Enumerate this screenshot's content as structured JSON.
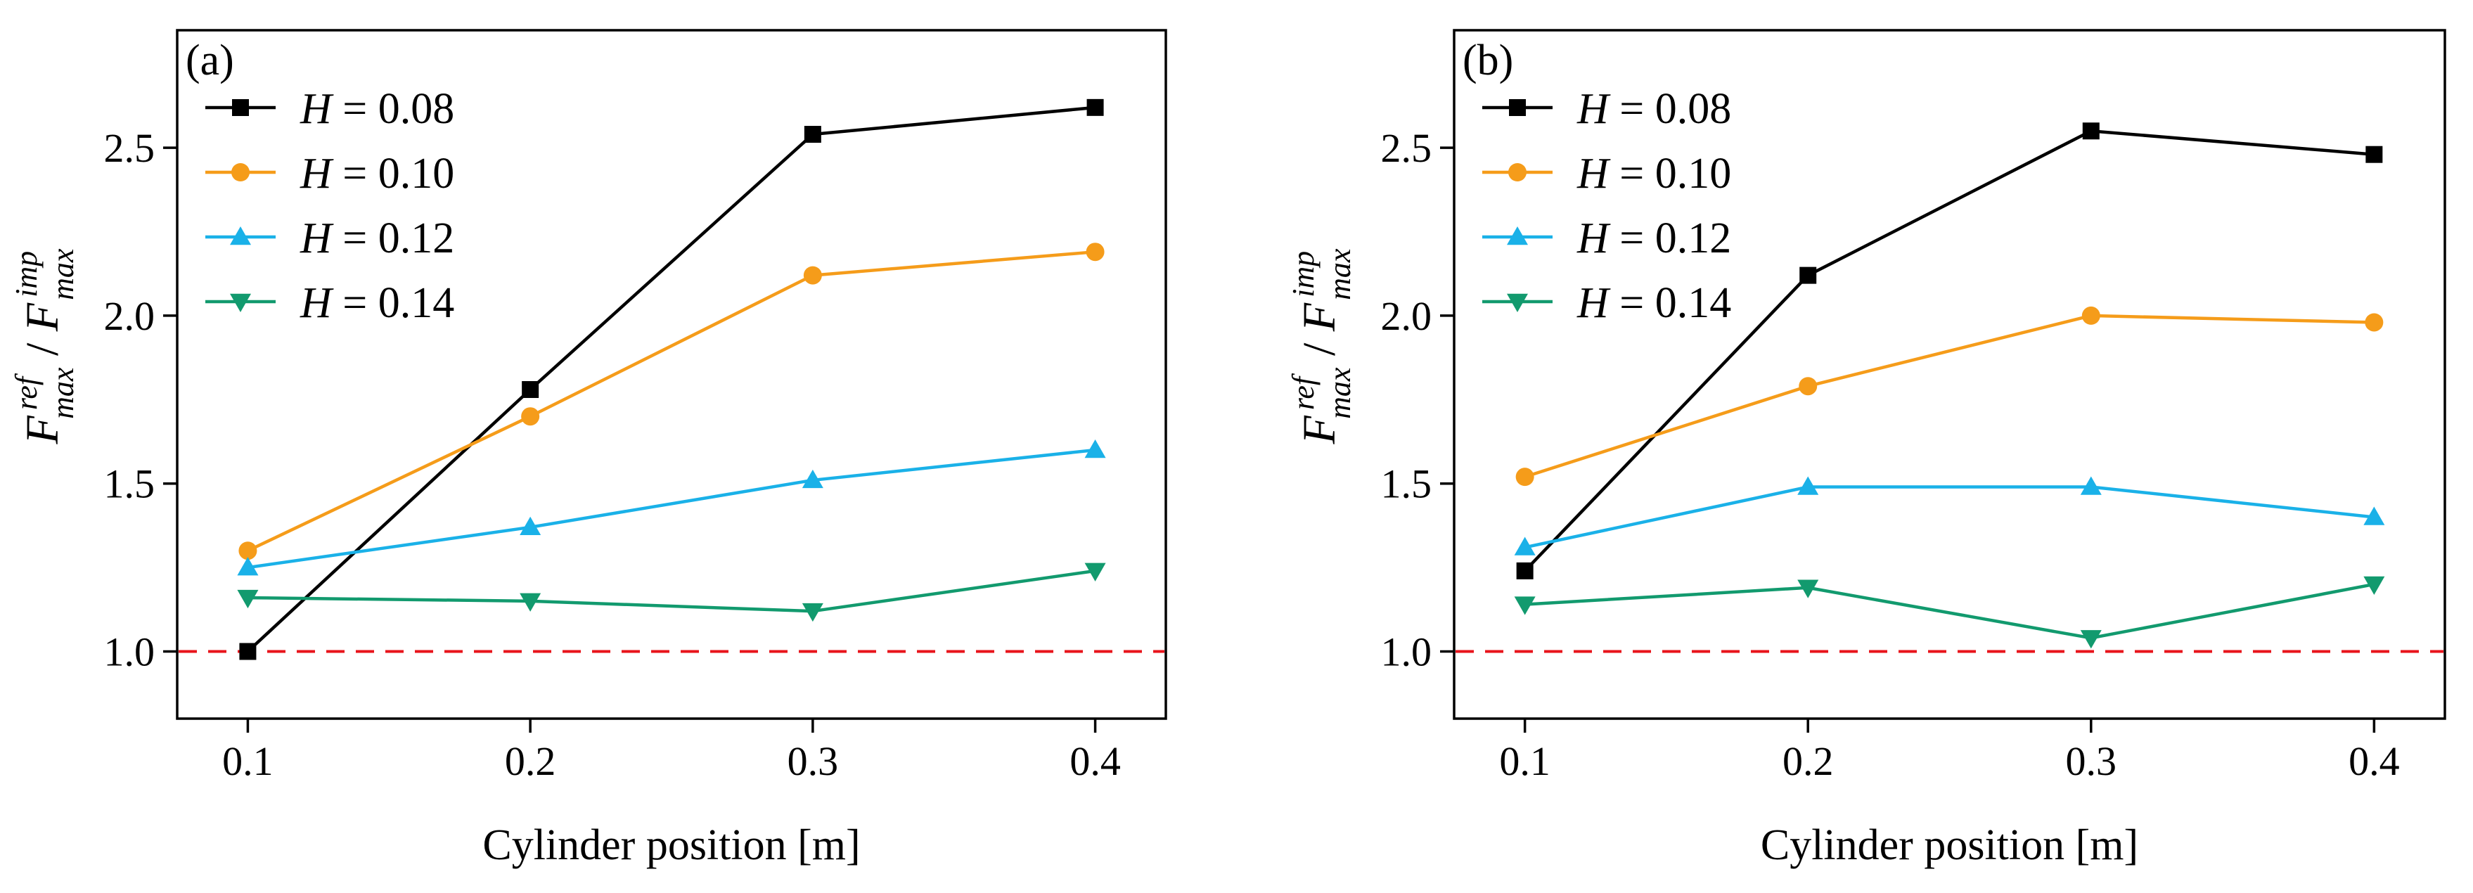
{
  "chart_data": [
    {
      "type": "line",
      "panel_label": "(a)",
      "xlabel": "Cylinder position [m]",
      "ylabel": {
        "base1": "F",
        "sup1": "ref",
        "sub1": "max",
        "sep": " / ",
        "base2": "F",
        "sup2": "imp",
        "sub2": "max"
      },
      "x": [
        0.1,
        0.2,
        0.3,
        0.4
      ],
      "xticks": [
        "0.1",
        "0.2",
        "0.3",
        "0.4"
      ],
      "xlim": [
        0.075,
        0.425
      ],
      "yticks": [
        "1.0",
        "1.5",
        "2.0",
        "2.5"
      ],
      "ytick_values": [
        1.0,
        1.5,
        2.0,
        2.5
      ],
      "ylim": [
        0.8,
        2.85
      ],
      "reference_line": {
        "y": 1.0,
        "color": "#e8141b",
        "style": "dashed"
      },
      "legend_position": "top-left",
      "series": [
        {
          "name": "0.08",
          "var": "H",
          "color": "#000000",
          "marker": "square",
          "values": [
            1.0,
            1.78,
            2.54,
            2.62
          ]
        },
        {
          "name": "0.10",
          "var": "H",
          "color": "#f59c1a",
          "marker": "circle",
          "values": [
            1.3,
            1.7,
            2.12,
            2.19
          ]
        },
        {
          "name": "0.12",
          "var": "H",
          "color": "#1ab1e8",
          "marker": "triangle-up",
          "values": [
            1.25,
            1.37,
            1.51,
            1.6
          ]
        },
        {
          "name": "0.14",
          "var": "H",
          "color": "#129a6e",
          "marker": "triangle-down",
          "values": [
            1.16,
            1.15,
            1.12,
            1.24
          ]
        }
      ]
    },
    {
      "type": "line",
      "panel_label": "(b)",
      "xlabel": "Cylinder position [m]",
      "ylabel": {
        "base1": "F",
        "sup1": "ref",
        "sub1": "max",
        "sep": " / ",
        "base2": "F",
        "sup2": "imp",
        "sub2": "max"
      },
      "x": [
        0.1,
        0.2,
        0.3,
        0.4
      ],
      "xticks": [
        "0.1",
        "0.2",
        "0.3",
        "0.4"
      ],
      "xlim": [
        0.075,
        0.425
      ],
      "yticks": [
        "1.0",
        "1.5",
        "2.0",
        "2.5"
      ],
      "ytick_values": [
        1.0,
        1.5,
        2.0,
        2.5
      ],
      "ylim": [
        0.8,
        2.85
      ],
      "reference_line": {
        "y": 1.0,
        "color": "#e8141b",
        "style": "dashed"
      },
      "legend_position": "top-left",
      "series": [
        {
          "name": "0.08",
          "var": "H",
          "color": "#000000",
          "marker": "square",
          "values": [
            1.24,
            2.12,
            2.55,
            2.48
          ]
        },
        {
          "name": "0.10",
          "var": "H",
          "color": "#f59c1a",
          "marker": "circle",
          "values": [
            1.52,
            1.79,
            2.0,
            1.98
          ]
        },
        {
          "name": "0.12",
          "var": "H",
          "color": "#1ab1e8",
          "marker": "triangle-up",
          "values": [
            1.31,
            1.49,
            1.49,
            1.4
          ]
        },
        {
          "name": "0.14",
          "var": "H",
          "color": "#129a6e",
          "marker": "triangle-down",
          "values": [
            1.14,
            1.19,
            1.04,
            1.2
          ]
        }
      ]
    }
  ]
}
